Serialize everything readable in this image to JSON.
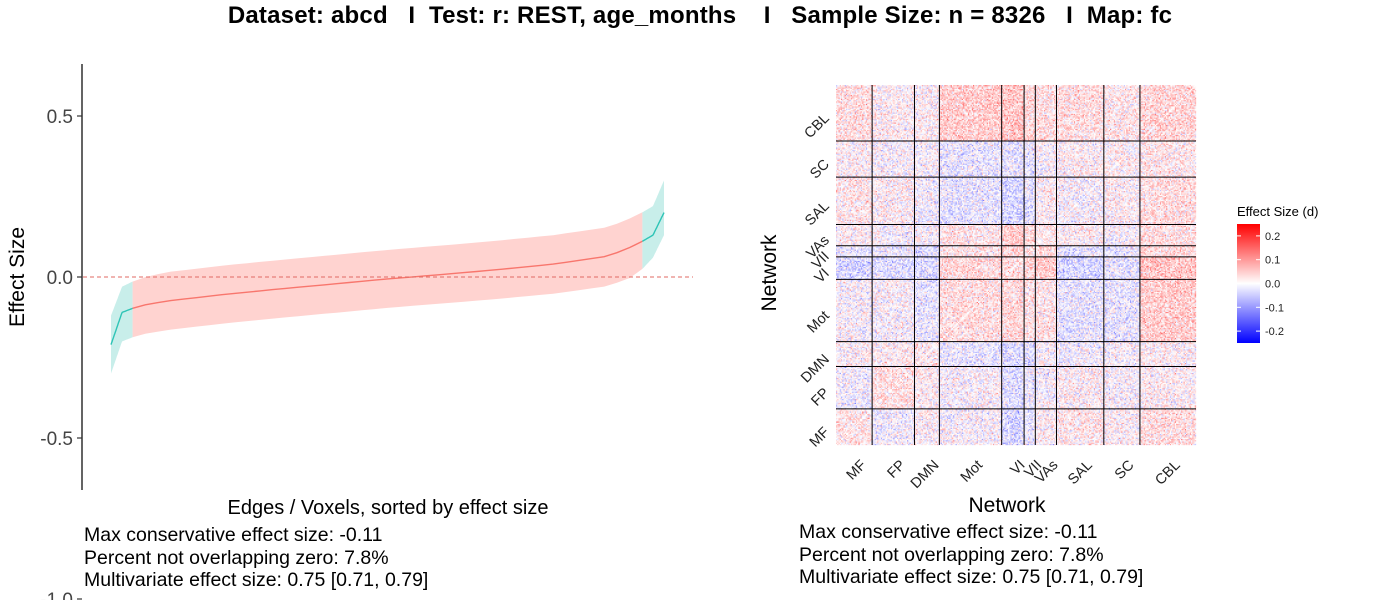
{
  "title": "Dataset: abcd   I  Test: r: REST, age_months    I   Sample Size: n = 8326   I  Map: fc",
  "colors": {
    "not_overlapping": "#2ec4b6",
    "not_overlapping_fill": "#c8eeea",
    "overlapping": "#f8766d",
    "overlapping_fill": "#ffd3d0",
    "zero_line": "#e06a63",
    "scale_low": "#0000ff",
    "scale_mid": "#ffffff",
    "scale_high": "#ff0000"
  },
  "chart_data": [
    {
      "type": "line",
      "title": "",
      "xlabel": "Edges / Voxels, sorted by effect size",
      "ylabel": "Effect Size",
      "ylim": [
        -1.3,
        1.3
      ],
      "y_ticks": [
        "1.0",
        "0.5",
        "0.0",
        "-0.5",
        "-1.0"
      ],
      "y_tick_values": [
        1.0,
        0.5,
        0.0,
        -0.5,
        -1.0
      ],
      "grid": false,
      "reference_line": {
        "y": 0,
        "style": "dashed"
      },
      "x": [
        0,
        0.02,
        0.05,
        0.1,
        0.2,
        0.3,
        0.4,
        0.5,
        0.6,
        0.7,
        0.8,
        0.9,
        0.95,
        0.98,
        1.0
      ],
      "estimate": [
        -0.21,
        -0.11,
        -0.09,
        -0.075,
        -0.055,
        -0.038,
        -0.022,
        -0.006,
        0.008,
        0.023,
        0.04,
        0.065,
        0.1,
        0.13,
        0.2
      ],
      "ci_lower": [
        -0.3,
        -0.2,
        -0.18,
        -0.165,
        -0.145,
        -0.128,
        -0.112,
        -0.096,
        -0.082,
        -0.068,
        -0.052,
        -0.028,
        0.005,
        0.06,
        0.13
      ],
      "ci_upper": [
        -0.12,
        -0.03,
        -0.005,
        0.015,
        0.035,
        0.052,
        0.068,
        0.084,
        0.098,
        0.113,
        0.13,
        0.155,
        0.19,
        0.22,
        0.3
      ],
      "series": [
        {
          "name": "",
          "segment": "not overlapping zero (low)",
          "x_range": [
            0,
            0.039
          ]
        },
        {
          "name": "",
          "segment": "overlapping zero",
          "x_range": [
            0.039,
            0.961
          ]
        },
        {
          "name": "",
          "segment": "not overlapping zero (high)",
          "x_range": [
            0.961,
            1.0
          ]
        }
      ],
      "annotations": [
        "Max conservative effect size: -0.11",
        "Percent not overlapping zero: 7.8%",
        "Multivariate effect size: 0.75 [0.71, 0.79]"
      ]
    },
    {
      "type": "heatmap",
      "title": "",
      "xlabel": "Network",
      "ylabel": "Network",
      "x_tick_labels": [
        "MF",
        "FP",
        "DMN",
        "Mot",
        "VI",
        "VII",
        "VAs",
        "SAL",
        "SC",
        "CBL"
      ],
      "y_tick_labels_top_to_bottom": [
        "CBL",
        "SC",
        "SAL",
        "VAs",
        "VII",
        "VI",
        "Mot",
        "DMN",
        "FP",
        "MF"
      ],
      "network_sizes": [
        29,
        34,
        20,
        50,
        18,
        9,
        17,
        38,
        29,
        45
      ],
      "network_mean_effect_matrix": [
        [
          0.02,
          -0.01,
          0.01,
          0.0,
          -0.04,
          -0.02,
          0.01,
          0.02,
          0.01,
          0.03
        ],
        [
          -0.01,
          0.03,
          0.01,
          0.0,
          -0.03,
          -0.01,
          0.0,
          0.01,
          0.0,
          0.01
        ],
        [
          0.01,
          0.01,
          0.02,
          -0.02,
          -0.03,
          -0.03,
          0.0,
          -0.01,
          0.0,
          0.01
        ],
        [
          0.0,
          0.0,
          -0.02,
          0.03,
          0.04,
          0.02,
          0.02,
          -0.02,
          -0.02,
          0.05
        ],
        [
          -0.04,
          -0.03,
          -0.03,
          0.04,
          0.03,
          0.04,
          0.05,
          -0.04,
          -0.02,
          0.06
        ],
        [
          -0.02,
          -0.01,
          -0.03,
          0.02,
          0.04,
          0.02,
          0.03,
          -0.02,
          -0.02,
          0.04
        ],
        [
          0.01,
          0.0,
          0.0,
          0.02,
          0.05,
          0.03,
          0.02,
          0.01,
          0.0,
          0.03
        ],
        [
          0.02,
          0.01,
          -0.01,
          -0.02,
          -0.04,
          -0.02,
          0.01,
          0.0,
          0.01,
          0.03
        ],
        [
          0.01,
          0.0,
          0.0,
          -0.02,
          -0.02,
          -0.02,
          0.0,
          0.01,
          0.01,
          0.02
        ],
        [
          0.03,
          0.01,
          0.01,
          0.05,
          0.06,
          0.04,
          0.03,
          0.03,
          0.02,
          0.04
        ]
      ],
      "colorbar": {
        "title": "Effect Size (d)",
        "range": [
          -0.25,
          0.25
        ],
        "tick_labels": [
          "0.2",
          "0.1",
          "0.0",
          "-0.1",
          "-0.2"
        ],
        "tick_values": [
          0.2,
          0.1,
          0.0,
          -0.1,
          -0.2
        ]
      },
      "annotations": [
        "Max conservative effect size: -0.11",
        "Percent not overlapping zero: 7.8%",
        "Multivariate effect size: 0.75 [0.71, 0.79]"
      ]
    }
  ]
}
